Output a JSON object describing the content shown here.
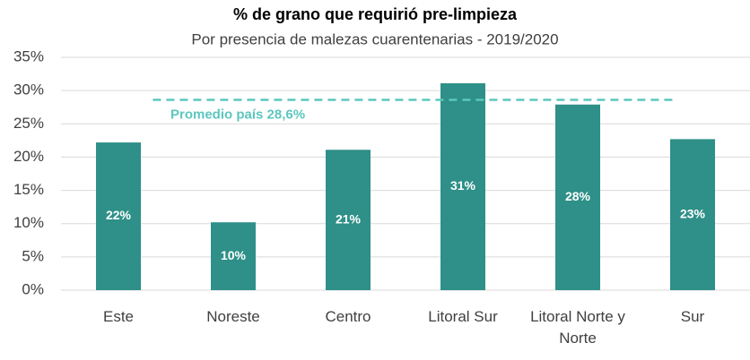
{
  "chart_data": {
    "type": "bar",
    "title": "% de grano que requirió pre-limpieza",
    "subtitle": "Por presencia de malezas cuarentenarias - 2019/2020",
    "categories": [
      "Este",
      "Noreste",
      "Centro",
      "Litoral Sur",
      "Litoral Norte y Norte",
      "Sur"
    ],
    "values": [
      22.2,
      10.2,
      21.1,
      31.1,
      27.9,
      22.7
    ],
    "value_labels": [
      "22%",
      "10%",
      "21%",
      "31%",
      "28%",
      "23%"
    ],
    "color": "#2e9088",
    "ylim": [
      0,
      35
    ],
    "yticks": [
      {
        "value": 0,
        "label": "0%"
      },
      {
        "value": 5,
        "label": "5%"
      },
      {
        "value": 10,
        "label": "10%"
      },
      {
        "value": 15,
        "label": "15%"
      },
      {
        "value": 20,
        "label": "20%"
      },
      {
        "value": 25,
        "label": "25%"
      },
      {
        "value": 30,
        "label": "30%"
      },
      {
        "value": 35,
        "label": "35%"
      }
    ],
    "grid": true,
    "average": {
      "value": 28.6,
      "label": "Promedio país 28,6%",
      "color": "#5bc7bd"
    }
  }
}
